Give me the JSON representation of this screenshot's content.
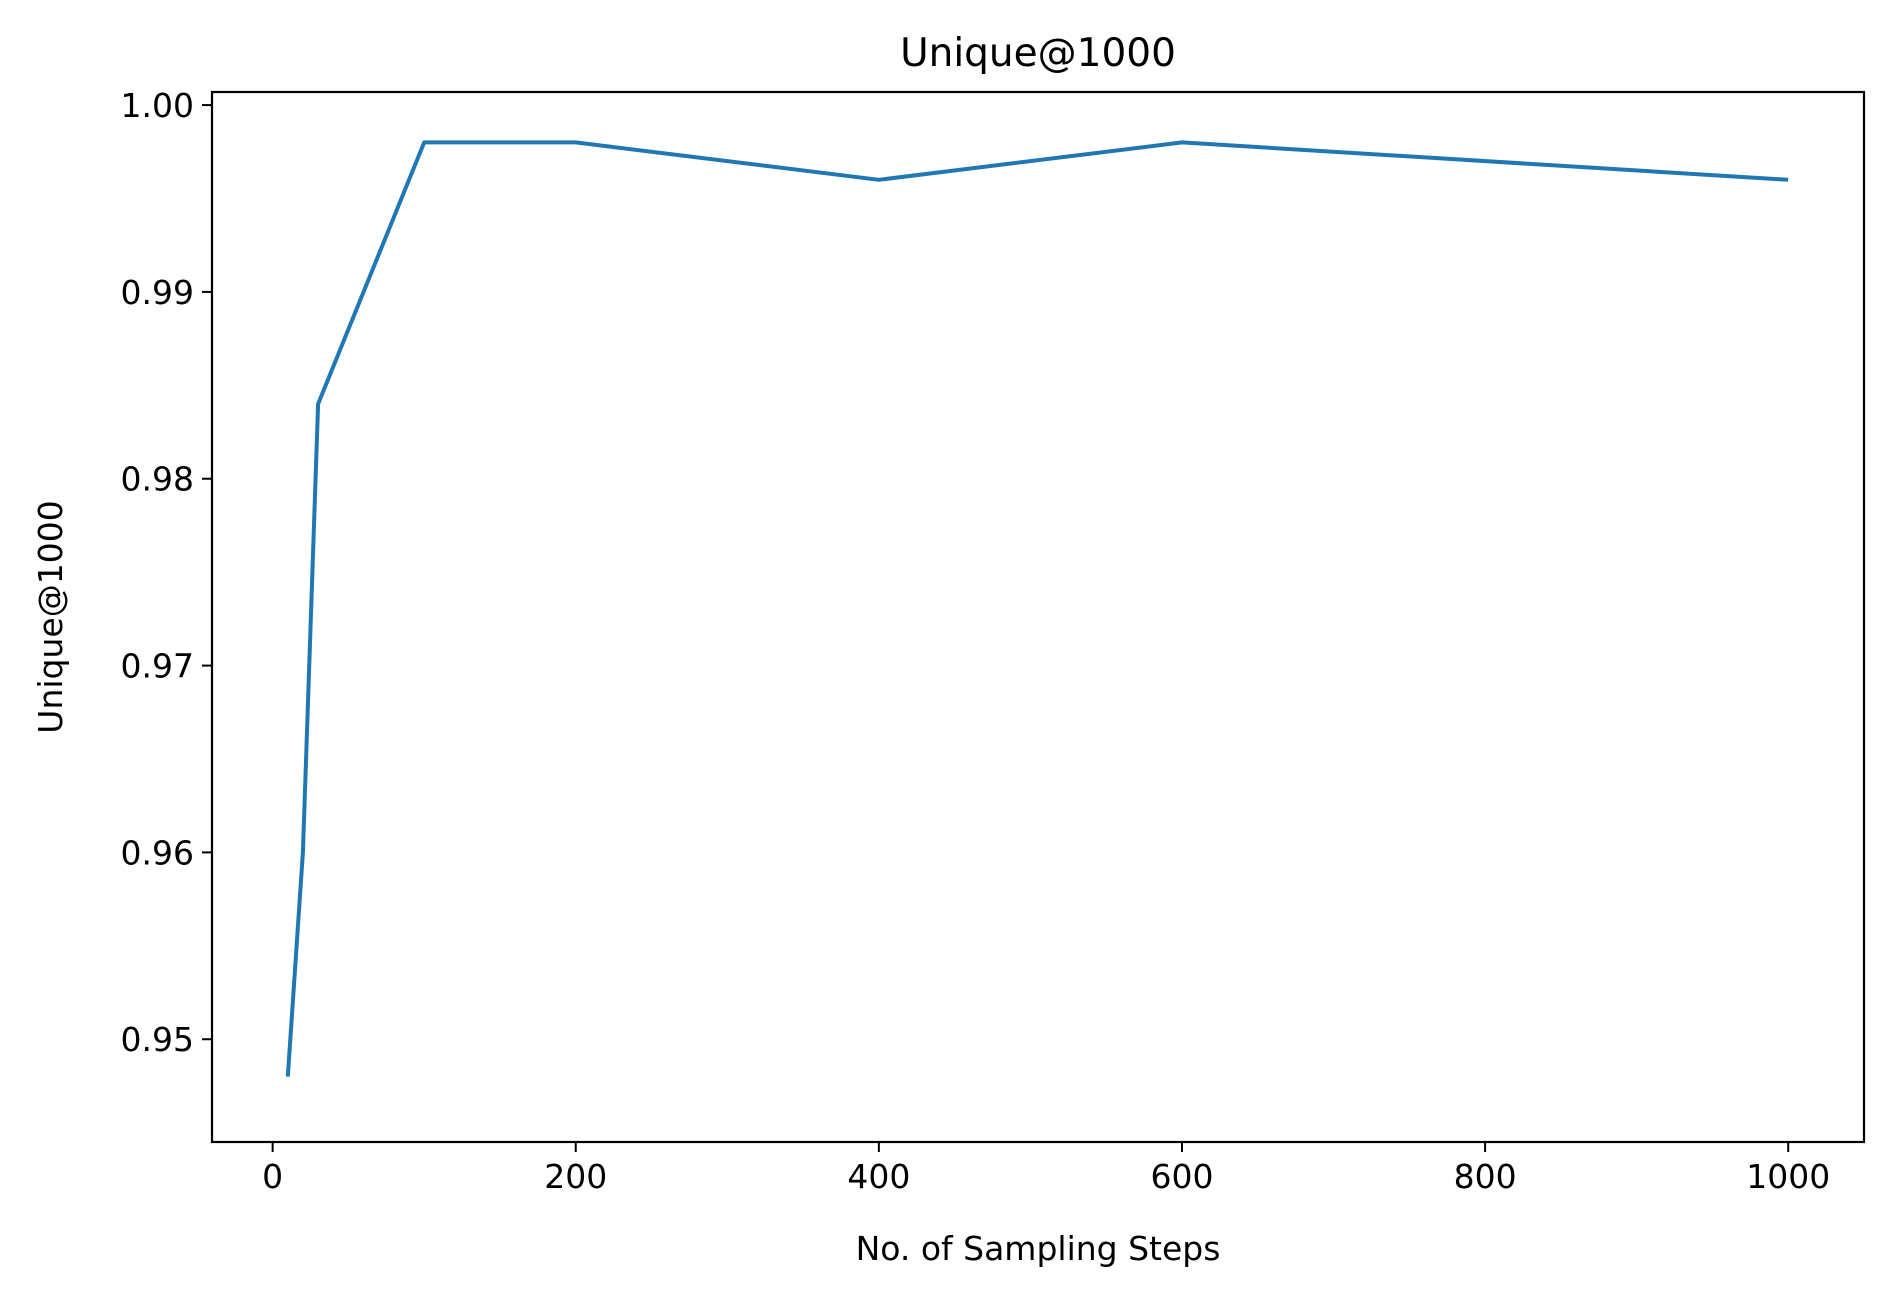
{
  "chart_data": {
    "type": "line",
    "title": "Unique@1000",
    "xlabel": "No. of Sampling Steps",
    "ylabel": "Unique@1000",
    "xlim": [
      -40,
      1050
    ],
    "ylim": [
      0.9445,
      1.0007
    ],
    "xticks": [
      0,
      200,
      400,
      600,
      800,
      1000
    ],
    "xtick_labels": [
      "0",
      "200",
      "400",
      "600",
      "800",
      "1000"
    ],
    "yticks": [
      0.95,
      0.96,
      0.97,
      0.98,
      0.99,
      1.0
    ],
    "ytick_labels": [
      "0.95",
      "0.96",
      "0.97",
      "0.98",
      "0.99",
      "1.00"
    ],
    "grid": false,
    "legend": "none",
    "series": [
      {
        "color": "#1f77b4",
        "x": [
          10,
          20,
          30,
          100,
          200,
          400,
          600,
          1000
        ],
        "y": [
          0.948,
          0.96,
          0.984,
          0.998,
          0.998,
          0.996,
          0.998,
          0.996
        ]
      }
    ]
  }
}
